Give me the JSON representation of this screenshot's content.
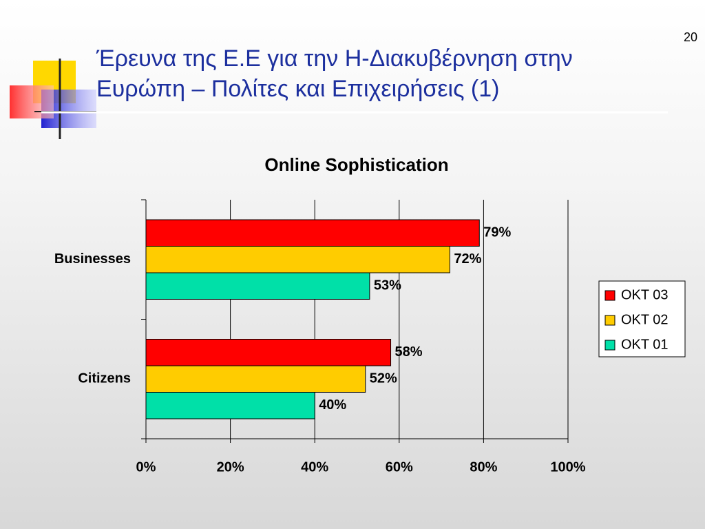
{
  "slide_number": "20",
  "title_lines": [
    "Έρευνα της Ε.Ε για την Η-Διακυβέρνηση στην",
    "Ευρώπη – Πολίτες και Επιχειρήσεις (1)"
  ],
  "chart_data": {
    "type": "bar",
    "orientation": "horizontal",
    "title": "Online Sophistication",
    "categories": [
      "Businesses",
      "Citizens"
    ],
    "series": [
      {
        "name": "OKT 03",
        "color": "#ff0000",
        "values": [
          79,
          58
        ],
        "value_labels": [
          "79%",
          "58%"
        ]
      },
      {
        "name": "OKT 02",
        "color": "#ffcc00",
        "values": [
          72,
          52
        ],
        "value_labels": [
          "72%",
          "52%"
        ]
      },
      {
        "name": "OKT 01",
        "color": "#00e0a8",
        "values": [
          53,
          40
        ],
        "value_labels": [
          "53%",
          "40%"
        ]
      }
    ],
    "xlim": [
      0,
      100
    ],
    "xticks": [
      {
        "value": 0,
        "label": "0%"
      },
      {
        "value": 20,
        "label": "20%"
      },
      {
        "value": 40,
        "label": "40%"
      },
      {
        "value": 60,
        "label": "60%"
      },
      {
        "value": 80,
        "label": "80%"
      },
      {
        "value": 100,
        "label": "100%"
      }
    ],
    "grid": true,
    "legend": "right"
  }
}
